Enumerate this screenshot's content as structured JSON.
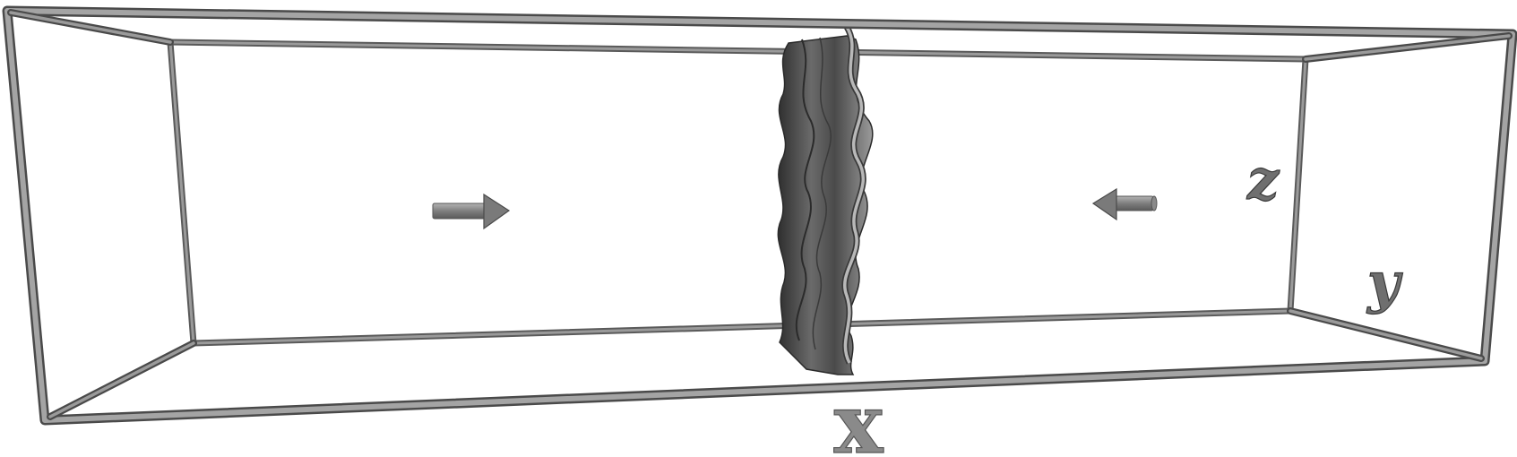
{
  "figure": {
    "axis_labels": {
      "x": "x",
      "y": "y",
      "z": "z"
    },
    "arrows": [
      {
        "id": "left-arrow",
        "direction": "right"
      },
      {
        "id": "right-arrow",
        "direction": "left"
      }
    ],
    "colors": {
      "box_frame": "#8c8c8c",
      "box_frame_dark": "#4a4a4a",
      "sheet_dark": "#3c3c3c",
      "sheet_mid": "#6e6e6e",
      "sheet_light": "#a8a8a8",
      "arrow": "#8a8a8a",
      "background": "#ffffff"
    }
  }
}
